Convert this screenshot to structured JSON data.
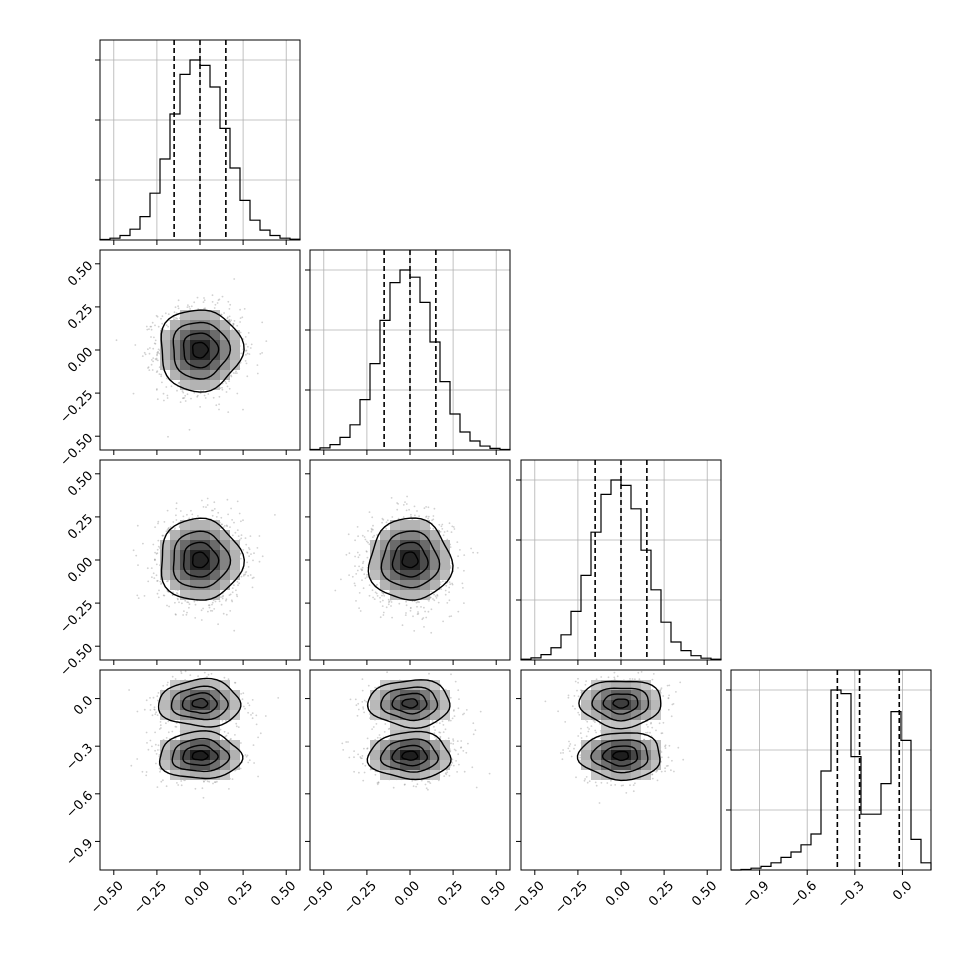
{
  "chart_data": {
    "type": "corner",
    "title": "",
    "parameters": [
      {
        "label": "",
        "distribution": "unimodal",
        "mean": 0.0,
        "std": 0.12,
        "range": [
          -0.58,
          0.58
        ],
        "ticks": [
          -0.5,
          -0.25,
          0.0,
          0.25,
          0.5
        ],
        "tick_labels": [
          "−0.50",
          "−0.25",
          "0.00",
          "0.25",
          "0.50"
        ],
        "quantiles": [
          -0.15,
          0.0,
          0.15
        ],
        "histogram": [
          0.003,
          0.01,
          0.025,
          0.06,
          0.13,
          0.26,
          0.45,
          0.7,
          0.92,
          1.0,
          0.97,
          0.85,
          0.62,
          0.4,
          0.22,
          0.11,
          0.055,
          0.025,
          0.01,
          0.004
        ]
      },
      {
        "label": "",
        "distribution": "unimodal",
        "mean": 0.0,
        "std": 0.12,
        "range": [
          -0.58,
          0.58
        ],
        "ticks": [
          -0.5,
          -0.25,
          0.0,
          0.25,
          0.5
        ],
        "tick_labels": [
          "−0.50",
          "−0.25",
          "0.00",
          "0.25",
          "0.50"
        ],
        "quantiles": [
          -0.15,
          0.0,
          0.15
        ],
        "histogram": [
          0.003,
          0.012,
          0.03,
          0.07,
          0.14,
          0.28,
          0.48,
          0.72,
          0.93,
          1.0,
          0.96,
          0.82,
          0.6,
          0.38,
          0.2,
          0.1,
          0.05,
          0.022,
          0.009,
          0.003
        ]
      },
      {
        "label": "",
        "distribution": "unimodal",
        "mean": 0.0,
        "std": 0.12,
        "range": [
          -0.58,
          0.58
        ],
        "ticks": [
          -0.5,
          -0.25,
          0.0,
          0.25,
          0.5
        ],
        "tick_labels": [
          "−0.50",
          "−0.25",
          "0.00",
          "0.25",
          "0.50"
        ],
        "quantiles": [
          -0.15,
          0.0,
          0.15
        ],
        "histogram": [
          0.004,
          0.012,
          0.03,
          0.068,
          0.14,
          0.27,
          0.47,
          0.71,
          0.92,
          1.0,
          0.97,
          0.84,
          0.61,
          0.39,
          0.21,
          0.1,
          0.052,
          0.024,
          0.01,
          0.004
        ]
      },
      {
        "label": "",
        "distribution": "bimodal",
        "modes": [
          -0.36,
          -0.03
        ],
        "range": [
          -1.08,
          0.18
        ],
        "ticks": [
          -0.9,
          -0.6,
          -0.3,
          0.0
        ],
        "tick_labels": [
          "−0.9",
          "−0.6",
          "−0.3",
          "0.0"
        ],
        "quantiles": [
          -0.41,
          -0.27,
          -0.02
        ],
        "histogram": [
          0.0,
          0.003,
          0.01,
          0.02,
          0.04,
          0.07,
          0.1,
          0.14,
          0.2,
          0.55,
          1.0,
          0.98,
          0.63,
          0.31,
          0.31,
          0.48,
          0.88,
          0.72,
          0.17,
          0.04
        ]
      }
    ],
    "contour_levels": 4,
    "scatter": true,
    "grid": true
  }
}
